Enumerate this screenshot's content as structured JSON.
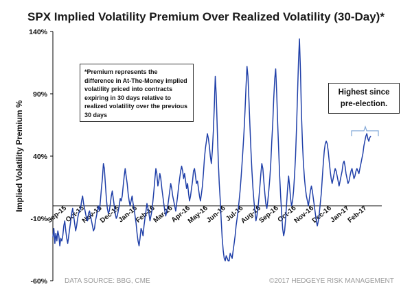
{
  "chart_data": {
    "type": "line",
    "title": "SPX Implied Volatility Premium Over Realized Volatility (30-Day)*",
    "ylabel": "Implied Volatility Premium %",
    "xlabel": "",
    "ylim": [
      -60,
      140
    ],
    "y_ticks": [
      "140%",
      "90%",
      "40%",
      "-10%",
      "-60%"
    ],
    "y_tick_values": [
      140,
      90,
      40,
      -10,
      -60
    ],
    "x_tick_labels": [
      "Sep-15",
      "Oct-15",
      "Nov-15",
      "Dec-15",
      "Jan-16",
      "Feb-16",
      "Mar-16",
      "Apr-16",
      "May-16",
      "Jun-16",
      "Jul-16",
      "Aug-16",
      "Sep-16",
      "Oct-16",
      "Nov-16",
      "Dec-16",
      "Jan-17",
      "Feb-17"
    ],
    "series": [
      {
        "color": "#1f3fa8",
        "x_start": "2015-09-01",
        "x_end": "2017-02-28",
        "values": [
          -25,
          -18,
          -30,
          -22,
          -28,
          -20,
          -24,
          -32,
          -26,
          -28,
          -24,
          -16,
          -12,
          -20,
          -26,
          -30,
          -24,
          -18,
          -12,
          -6,
          -2,
          -8,
          -14,
          -20,
          -16,
          -10,
          -6,
          -4,
          -2,
          4,
          8,
          2,
          -2,
          -6,
          -10,
          -12,
          -6,
          -4,
          -8,
          -12,
          -16,
          -20,
          -18,
          -12,
          -8,
          -4,
          0,
          -4,
          4,
          14,
          22,
          34,
          30,
          18,
          6,
          -2,
          -6,
          -4,
          2,
          8,
          12,
          6,
          0,
          -6,
          -10,
          -8,
          -4,
          0,
          6,
          4,
          8,
          16,
          24,
          30,
          24,
          18,
          10,
          4,
          0,
          4,
          8,
          2,
          -2,
          -8,
          -14,
          -22,
          -28,
          -32,
          -26,
          -18,
          -20,
          -24,
          -16,
          -10,
          -4,
          2,
          -2,
          -6,
          -12,
          -8,
          -4,
          4,
          12,
          22,
          30,
          26,
          16,
          20,
          26,
          22,
          14,
          8,
          2,
          -4,
          -8,
          -4,
          0,
          6,
          12,
          18,
          14,
          8,
          4,
          0,
          -4,
          2,
          8,
          16,
          22,
          28,
          32,
          28,
          22,
          26,
          20,
          14,
          18,
          10,
          4,
          8,
          14,
          20,
          28,
          30,
          24,
          18,
          20,
          14,
          8,
          4,
          10,
          16,
          26,
          38,
          46,
          52,
          58,
          54,
          48,
          40,
          34,
          44,
          60,
          80,
          104,
          88,
          62,
          36,
          18,
          4,
          -12,
          -26,
          -36,
          -42,
          -44,
          -40,
          -42,
          -44,
          -44,
          -38,
          -40,
          -42,
          -36,
          -30,
          -24,
          -16,
          -10,
          -4,
          4,
          12,
          22,
          34,
          46,
          60,
          76,
          96,
          112,
          104,
          84,
          64,
          44,
          28,
          14,
          4,
          -4,
          -12,
          -8,
          -2,
          6,
          16,
          26,
          34,
          30,
          20,
          10,
          2,
          -2,
          4,
          12,
          22,
          34,
          52,
          66,
          86,
          102,
          110,
          90,
          66,
          44,
          24,
          8,
          -6,
          -18,
          -24,
          -20,
          -10,
          2,
          14,
          24,
          16,
          6,
          0,
          4,
          12,
          24,
          40,
          62,
          90,
          116,
          134,
          108,
          74,
          50,
          34,
          22,
          14,
          8,
          4,
          0,
          6,
          12,
          16,
          12,
          6,
          0,
          -6,
          -12,
          -16,
          -12,
          -6,
          2,
          10,
          22,
          34,
          44,
          50,
          52,
          50,
          44,
          36,
          28,
          22,
          18,
          22,
          26,
          30,
          28,
          24,
          20,
          16,
          20,
          24,
          28,
          34,
          36,
          32,
          26,
          22,
          18,
          20,
          24,
          28,
          30,
          26,
          22,
          24,
          28,
          30,
          28,
          26,
          30,
          34,
          38,
          42,
          48,
          52,
          56,
          58,
          54,
          52,
          55,
          56
        ]
      }
    ],
    "legend": "none",
    "grid": false
  },
  "annotations": {
    "note": "*Premium  represents the difference in At-The-Money implied volatility priced into contracts expiring  in 30 days relative to realized  volatility over the previous 30 days",
    "callout": "Highest since pre-election."
  },
  "footer": {
    "source": "DATA SOURCE: BBG, CME",
    "copyright": "©2017  HEDGEYE RISK MANAGEMENT"
  }
}
